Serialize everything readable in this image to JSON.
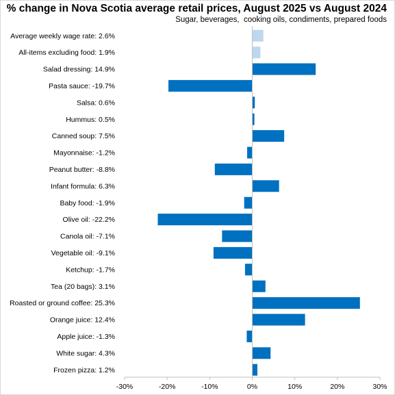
{
  "chart_data": {
    "type": "bar",
    "orientation": "horizontal",
    "title": "% change in Nova Scotia average retail prices, August 2025 vs August 2024",
    "subtitle": "Sugar, beverages,  cooking oils, condiments, prepared foods",
    "categories": [
      "Average weekly wage rate: 2.6%",
      "All-items excluding food: 1.9%",
      "Salad dressing: 14.9%",
      "Pasta sauce: -19.7%",
      "Salsa: 0.6%",
      "Hummus: 0.5%",
      "Canned soup: 7.5%",
      "Mayonnaise: -1.2%",
      "Peanut butter: -8.8%",
      "Infant formula: 6.3%",
      "Baby food: -1.9%",
      "Olive oil: -22.2%",
      "Canola oil: -7.1%",
      "Vegetable oil: -9.1%",
      "Ketchup: -1.7%",
      "Tea (20 bags): 3.1%",
      "Roasted or ground coffee: 25.3%",
      "Orange juice: 12.4%",
      "Apple juice: -1.3%",
      "White sugar: 4.3%",
      "Frozen pizza: 1.2%"
    ],
    "values": [
      2.6,
      1.9,
      14.9,
      -19.7,
      0.6,
      0.5,
      7.5,
      -1.2,
      -8.8,
      6.3,
      -1.9,
      -22.2,
      -7.1,
      -9.1,
      -1.7,
      3.1,
      25.3,
      12.4,
      -1.3,
      4.3,
      1.2
    ],
    "highlight_categories": [
      "Average weekly wage rate: 2.6%",
      "All-items excluding food: 1.9%"
    ],
    "xlim": [
      -30,
      30
    ],
    "xticks": [
      -30,
      -20,
      -10,
      0,
      10,
      20,
      30
    ],
    "xtick_labels": [
      "-30%",
      "-20%",
      "-10%",
      "0%",
      "10%",
      "20%",
      "30%"
    ],
    "grid": false,
    "legend": "none",
    "colors": {
      "bar": "#0070c0",
      "highlight": "#bdd7ee",
      "axis": "#bfbfbf"
    }
  }
}
